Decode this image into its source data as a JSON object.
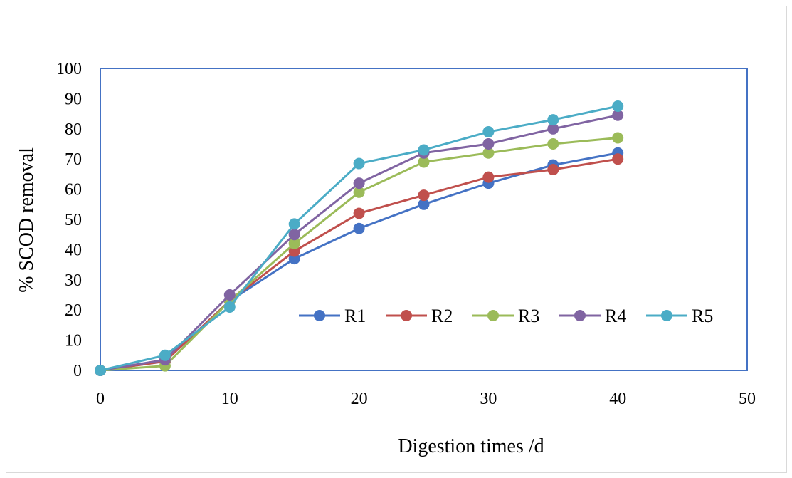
{
  "chart_data": {
    "type": "line",
    "title": "",
    "xlabel": "Digestion times /d",
    "ylabel": "% SCOD removal",
    "xlim": [
      0,
      50
    ],
    "ylim": [
      0,
      100
    ],
    "x_ticks": [
      0,
      10,
      20,
      30,
      40,
      50
    ],
    "y_ticks": [
      0,
      10,
      20,
      30,
      40,
      50,
      60,
      70,
      80,
      90,
      100
    ],
    "grid": false,
    "legend_position": "center-right",
    "x": [
      0,
      5,
      10,
      15,
      20,
      25,
      30,
      35,
      40
    ],
    "series": [
      {
        "name": "R1",
        "color": "#4472C4",
        "values": [
          0,
          3,
          23,
          37,
          47,
          55,
          62,
          68,
          72
        ]
      },
      {
        "name": "R2",
        "color": "#C0504D",
        "values": [
          0,
          3,
          23,
          39.5,
          52,
          58,
          64,
          66.5,
          70
        ]
      },
      {
        "name": "R3",
        "color": "#9BBB59",
        "values": [
          0,
          1.5,
          23,
          42,
          59,
          69,
          72,
          75,
          77
        ]
      },
      {
        "name": "R4",
        "color": "#8064A2",
        "values": [
          0,
          3.5,
          25,
          45,
          62,
          72,
          75,
          80,
          84.5
        ]
      },
      {
        "name": "R5",
        "color": "#4BACC6",
        "values": [
          0,
          5,
          21,
          48.5,
          68.5,
          73,
          79,
          83,
          87.5
        ]
      }
    ],
    "plot_border_color": "#4472C4"
  }
}
